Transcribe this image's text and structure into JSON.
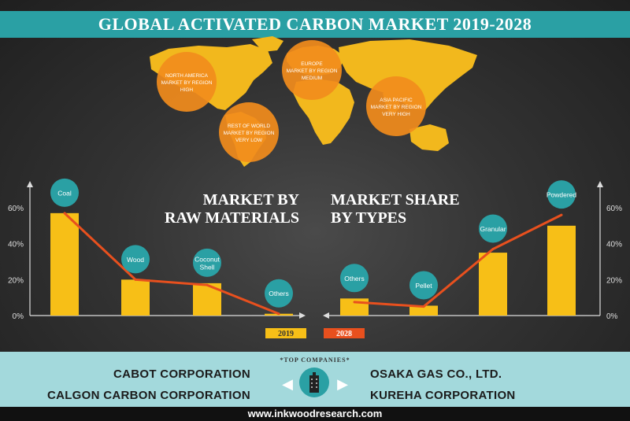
{
  "title": "GLOBAL ACTIVATED CARBON MARKET 2019-2028",
  "map": {
    "regions": [
      {
        "lines": [
          "NORTH AMERICA",
          "MARKET BY REGION",
          "HIGH"
        ]
      },
      {
        "lines": [
          "EUROPE",
          "MARKET BY REGION",
          "MEDIUM"
        ]
      },
      {
        "lines": [
          "ASIA PACIFIC",
          "MARKET BY REGION",
          "VERY HIGH"
        ]
      },
      {
        "lines": [
          "REST OF WORLD",
          "MARKET BY REGION",
          "VERY LOW"
        ]
      }
    ]
  },
  "legend": {
    "y2019": "2019",
    "y2028": "2028"
  },
  "colors": {
    "bar": "#f7bf17",
    "line": "#e8501e",
    "teal": "#2aa0a4"
  },
  "chart_data": [
    {
      "type": "bar",
      "title_lines": [
        "MARKET BY",
        "RAW MATERIALS"
      ],
      "categories": [
        "Coal",
        "Wood",
        "Coconut Shell",
        "Others"
      ],
      "ylim": [
        0,
        60
      ],
      "yticks": [
        "0%",
        "20%",
        "40%",
        "60%"
      ],
      "series": [
        {
          "name": "2019",
          "type": "bar",
          "values": [
            57,
            20,
            18,
            1
          ]
        },
        {
          "name": "2028",
          "type": "line",
          "values": [
            57,
            20,
            17,
            1
          ]
        }
      ]
    },
    {
      "type": "bar",
      "title_lines": [
        "MARKET SHARE",
        "BY TYPES"
      ],
      "categories": [
        "Others",
        "Pellet",
        "Granular",
        "Powdered"
      ],
      "ylim": [
        0,
        60
      ],
      "yticks": [
        "0%",
        "20%",
        "40%",
        "60%"
      ],
      "series": [
        {
          "name": "2019",
          "type": "bar",
          "values": [
            9.5,
            5.5,
            35,
            50
          ]
        },
        {
          "name": "2028",
          "type": "line",
          "values": [
            7.5,
            5,
            37,
            56
          ]
        }
      ]
    }
  ],
  "footer": {
    "top_companies": "*TOP COMPANIES*",
    "left": [
      "CABOT CORPORATION",
      "CALGON CARBON CORPORATION"
    ],
    "right": [
      "OSAKA GAS CO., LTD.",
      "KUREHA CORPORATION"
    ],
    "url": "www.inkwoodresearch.com"
  }
}
